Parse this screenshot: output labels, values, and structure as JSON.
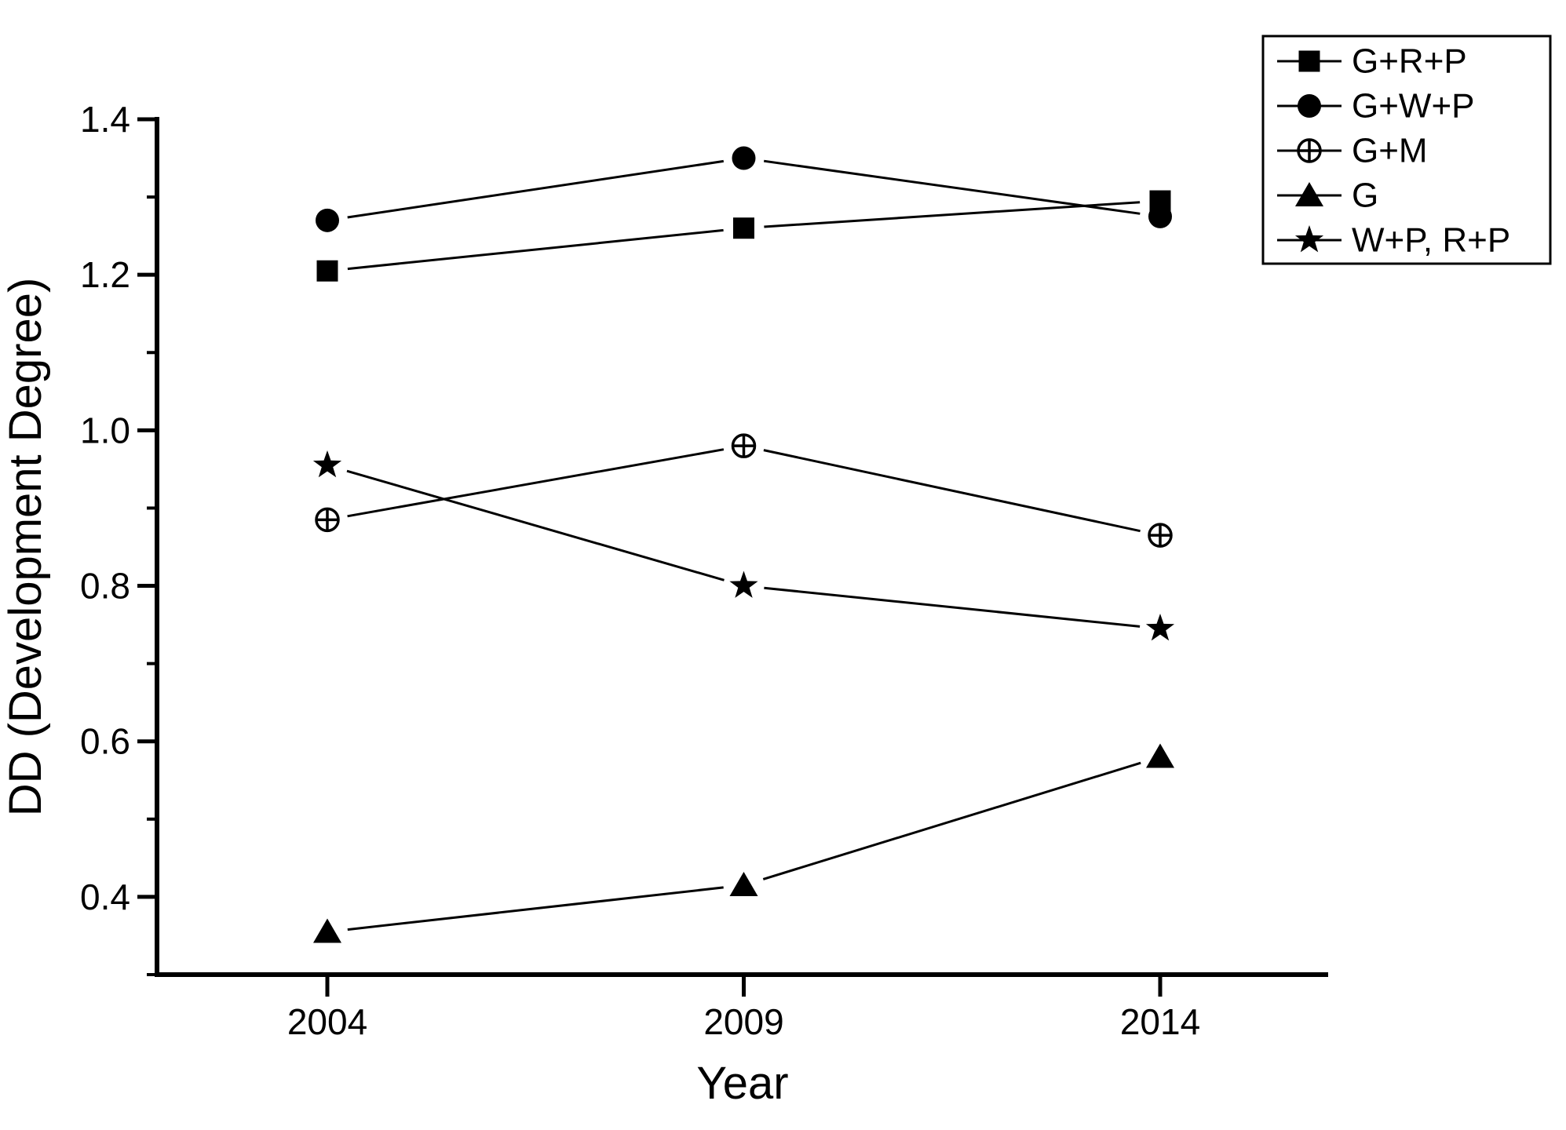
{
  "chart_data": {
    "type": "line",
    "title": "",
    "xlabel": "Year",
    "ylabel": "DD (Development Degree)",
    "x": [
      2004,
      2009,
      2014
    ],
    "x_tick_labels": [
      "2004",
      "2009",
      "2014"
    ],
    "y_ticks": [
      0.4,
      0.6,
      0.8,
      1.0,
      1.2,
      1.4
    ],
    "y_tick_labels": [
      "0.4",
      "0.6",
      "0.8",
      "1.0",
      "1.2",
      "1.4"
    ],
    "y_minor_ticks": [
      0.3,
      0.5,
      0.7,
      0.9,
      1.1,
      1.3
    ],
    "ylim": [
      0.3,
      1.4
    ],
    "grid": false,
    "legend_position": "top-right",
    "series": [
      {
        "name": "G+R+P",
        "marker": "filled-square",
        "values": [
          1.205,
          1.26,
          1.295
        ]
      },
      {
        "name": "G+W+P",
        "marker": "filled-circle",
        "values": [
          1.27,
          1.35,
          1.275
        ]
      },
      {
        "name": "G+M",
        "marker": "circle-plus",
        "values": [
          0.885,
          0.98,
          0.865
        ]
      },
      {
        "name": "G",
        "marker": "filled-triangle",
        "values": [
          0.355,
          0.415,
          0.58
        ]
      },
      {
        "name": "W+P, R+P",
        "marker": "filled-star",
        "values": [
          0.955,
          0.8,
          0.745
        ]
      }
    ],
    "colors": {
      "foreground": "#000000",
      "background": "#ffffff"
    }
  }
}
